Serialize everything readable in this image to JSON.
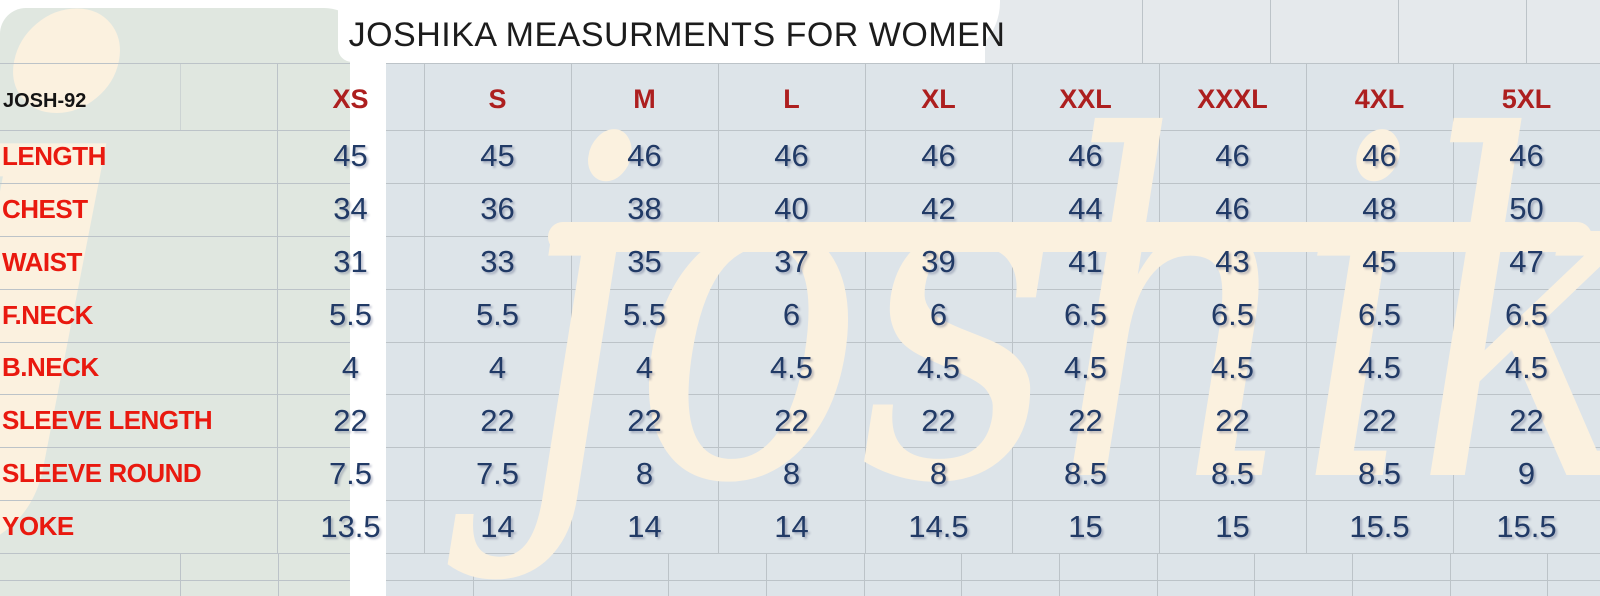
{
  "title": "JOSHIKA MEASURMENTS FOR WOMEN",
  "product_code": "JOSH-92",
  "watermark": {
    "script_text": "joshika",
    "left_letter": "j"
  },
  "colors": {
    "label_red": "#e9190f",
    "size_header_red": "#ad1f1f",
    "value_navy": "#213a66",
    "title_black": "#1c1c1c",
    "panel_green": "#e0e7e0",
    "panel_blue": "#dde4e9",
    "title_strip_gray": "#e5e9ec",
    "watermark_cream": "#fbf1df",
    "grid_line": "#bcc3c8"
  },
  "chart_data": {
    "type": "table",
    "title": "JOSHIKA MEASURMENTS FOR WOMEN",
    "row_header": "JOSH-92",
    "columns": [
      "XS",
      "S",
      "M",
      "L",
      "XL",
      "XXL",
      "XXXL",
      "4XL",
      "5XL"
    ],
    "rows": [
      {
        "label": "LENGTH",
        "values": [
          "45",
          "45",
          "46",
          "46",
          "46",
          "46",
          "46",
          "46",
          "46"
        ]
      },
      {
        "label": "CHEST",
        "values": [
          "34",
          "36",
          "38",
          "40",
          "42",
          "44",
          "46",
          "48",
          "50"
        ]
      },
      {
        "label": "WAIST",
        "values": [
          "31",
          "33",
          "35",
          "37",
          "39",
          "41",
          "43",
          "45",
          "47"
        ]
      },
      {
        "label": "F.NECK",
        "values": [
          "5.5",
          "5.5",
          "5.5",
          "6",
          "6",
          "6.5",
          "6.5",
          "6.5",
          "6.5"
        ]
      },
      {
        "label": "B.NECK",
        "values": [
          "4",
          "4",
          "4",
          "4.5",
          "4.5",
          "4.5",
          "4.5",
          "4.5",
          "4.5"
        ]
      },
      {
        "label": "SLEEVE LENGTH",
        "values": [
          "22",
          "22",
          "22",
          "22",
          "22",
          "22",
          "22",
          "22",
          "22"
        ]
      },
      {
        "label": "SLEEVE ROUND",
        "values": [
          "7.5",
          "7.5",
          "8",
          "8",
          "8",
          "8.5",
          "8.5",
          "8.5",
          "9"
        ]
      },
      {
        "label": "YOKE",
        "values": [
          "13.5",
          "14",
          "14",
          "14",
          "14.5",
          "15",
          "15",
          "15.5",
          "15.5"
        ]
      }
    ],
    "layout_hint": "left label column + 9 size columns; title merged across top; two empty spreadsheet rows at bottom"
  }
}
